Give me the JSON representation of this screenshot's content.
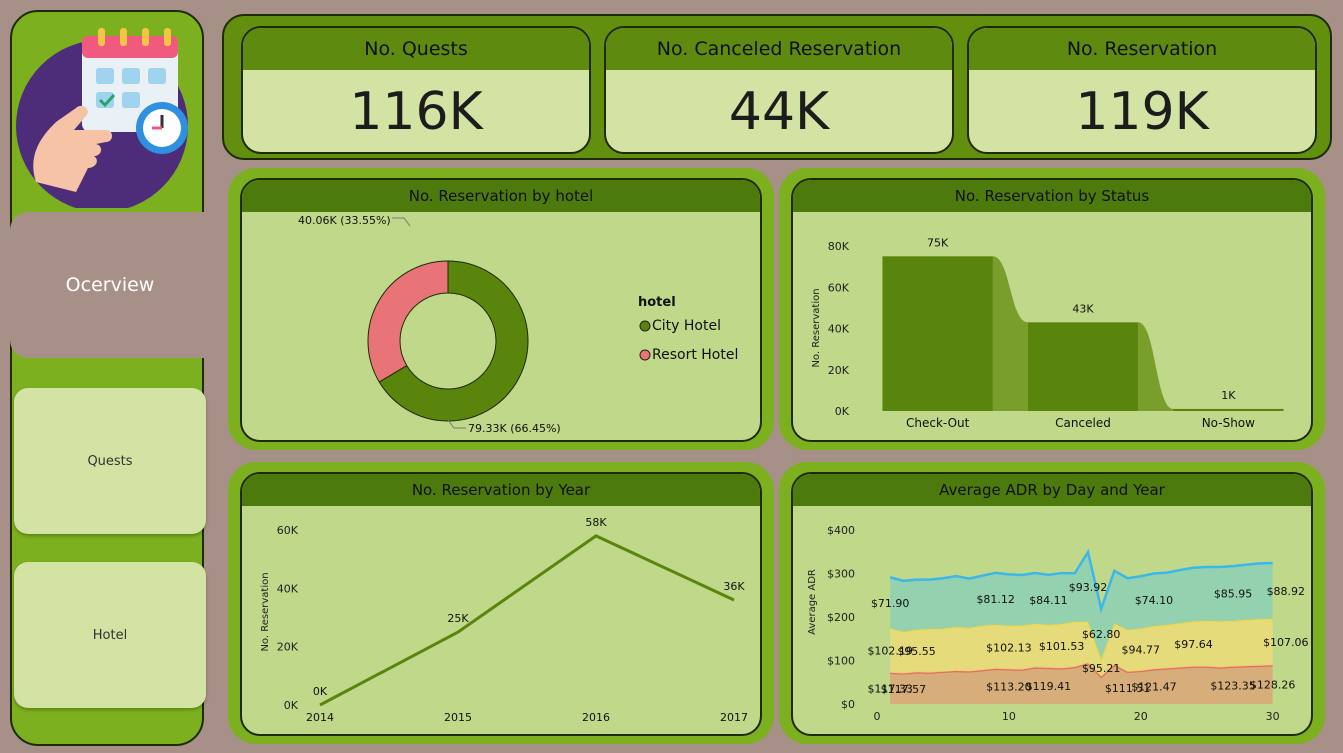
{
  "sidebar": {
    "active_label": "Ocerview",
    "quests_label": "Quests",
    "hotel_label": "Hotel"
  },
  "kpis": [
    {
      "label": "No. Quests",
      "value": "116K"
    },
    {
      "label": "No. Canceled Reservation",
      "value": "44K"
    },
    {
      "label": "No. Reservation",
      "value": "119K"
    }
  ],
  "colors": {
    "dark_green": "#5a850d",
    "pink": "#e87478",
    "blue": "#3cb7ea",
    "yellow": "#f0d84a",
    "red": "#e86a62"
  },
  "chart_data": [
    {
      "type": "pie",
      "title": "No. Reservation by hotel",
      "legend_title": "hotel",
      "categories": [
        "City Hotel",
        "Resort Hotel"
      ],
      "values": [
        79.33,
        40.06
      ],
      "data_labels": [
        "79.33K (66.45%)",
        "40.06K (33.55%)"
      ],
      "legend": "right"
    },
    {
      "type": "bar",
      "title": "No. Reservation by Status",
      "ylabel": "No. Reservation",
      "categories": [
        "Check-Out",
        "Canceled",
        "No-Show"
      ],
      "values": [
        75,
        43,
        1
      ],
      "data_labels": [
        "75K",
        "43K",
        "1K"
      ],
      "yticks": [
        "0K",
        "20K",
        "40K",
        "60K",
        "80K"
      ],
      "ylim": [
        0,
        80
      ]
    },
    {
      "type": "line",
      "title": "No. Reservation by Year",
      "ylabel": "No. Reservation",
      "categories": [
        "2014",
        "2015",
        "2016",
        "2017"
      ],
      "values": [
        0,
        25,
        58,
        36
      ],
      "data_labels": [
        "0K",
        "25K",
        "58K",
        "36K"
      ],
      "yticks": [
        "0K",
        "20K",
        "40K",
        "60K"
      ],
      "ylim": [
        0,
        60
      ]
    },
    {
      "type": "area",
      "title": "Average ADR by Day and Year",
      "ylabel": "Average ADR",
      "yticks": [
        "$0",
        "$100",
        "$200",
        "$300",
        "$400"
      ],
      "xticks": [
        "0",
        "10",
        "20",
        "30"
      ],
      "xlim": [
        0,
        32
      ],
      "ylim": [
        0,
        400
      ],
      "series": [
        {
          "values": [
            71.9,
            70,
            73,
            72,
            74,
            76,
            75,
            78,
            81.12,
            80,
            79,
            84.11,
            83,
            82,
            85,
            93.92,
            62.8,
            90,
            74.1,
            76,
            80,
            82,
            84,
            86,
            85.95,
            84,
            86,
            87,
            88,
            88.92
          ]
        },
        {
          "values": [
            102.19,
            95.55,
            98,
            100,
            99,
            101,
            100,
            102.13,
            101,
            100,
            101.53,
            100,
            99,
            102,
            104,
            95.21,
            40,
            94.77,
            96,
            97.64,
            99,
            100,
            102,
            104,
            105,
            106,
            105,
            106,
            107.06,
            107
          ]
        },
        {
          "values": [
            117.33,
            117.57,
            115,
            114,
            116,
            117,
            113.2,
            115,
            119.41,
            118,
            116,
            117,
            115,
            117,
            111.51,
            160,
            116,
            121.47,
            119,
            120,
            121,
            120,
            122,
            123.35,
            124,
            125,
            126,
            127,
            128.26,
            128
          ]
        }
      ],
      "data_labels": [
        {
          "day": 1,
          "text": "$117.33"
        },
        {
          "day": 2,
          "text": "$117.57"
        },
        {
          "day": 10,
          "text": "$113.20"
        },
        {
          "day": 13,
          "text": "$119.41"
        },
        {
          "day": 19,
          "text": "$111.51"
        },
        {
          "day": 21,
          "text": "$121.47"
        },
        {
          "day": 27,
          "text": "$123.35"
        },
        {
          "day": 30,
          "text": "$128.26"
        },
        {
          "day": 1,
          "text": "$102.19"
        },
        {
          "day": 3,
          "text": "$95.55"
        },
        {
          "day": 10,
          "text": "$102.13"
        },
        {
          "day": 14,
          "text": "$101.53"
        },
        {
          "day": 17,
          "text": "$95.21"
        },
        {
          "day": 20,
          "text": "$94.77"
        },
        {
          "day": 24,
          "text": "$97.64"
        },
        {
          "day": 31,
          "text": "$107.06"
        },
        {
          "day": 1,
          "text": "$71.90"
        },
        {
          "day": 9,
          "text": "$81.12"
        },
        {
          "day": 13,
          "text": "$84.11"
        },
        {
          "day": 16,
          "text": "$93.92"
        },
        {
          "day": 17,
          "text": "$62.80"
        },
        {
          "day": 21,
          "text": "$74.10"
        },
        {
          "day": 27,
          "text": "$85.95"
        },
        {
          "day": 31,
          "text": "$88.92"
        }
      ]
    }
  ]
}
